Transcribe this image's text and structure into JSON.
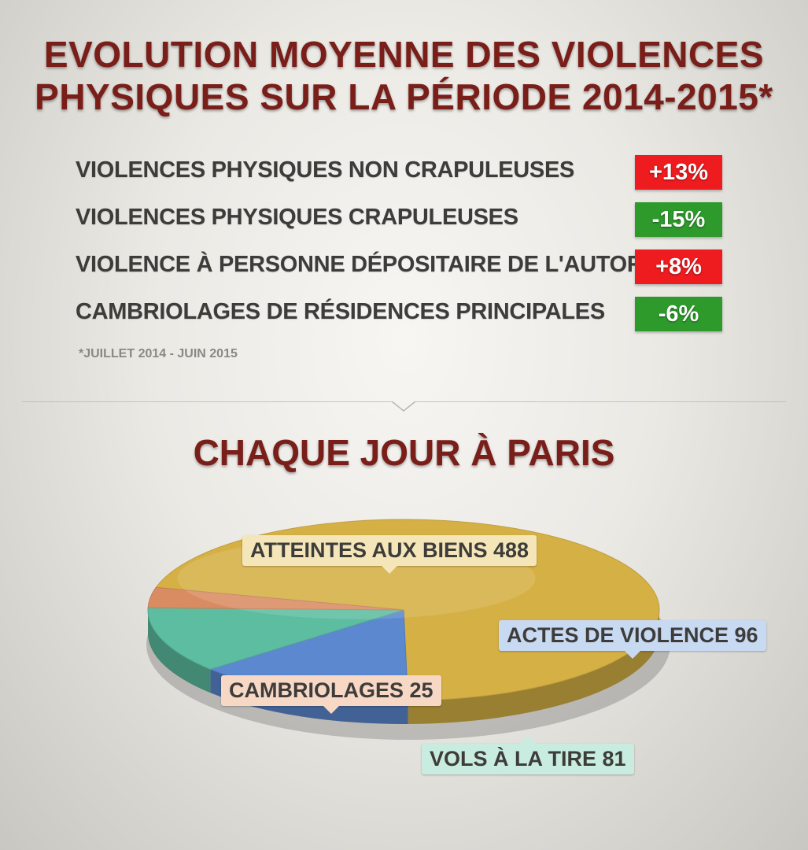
{
  "title": {
    "line1": "EVOLUTION MOYENNE DES VIOLENCES",
    "line2": "PHYSIQUES SUR LA PÉRIODE 2014-2015*"
  },
  "stats": [
    {
      "label": "VIOLENCES PHYSIQUES NON CRAPULEUSES",
      "value": "+13%",
      "color": "#ee1b1f"
    },
    {
      "label": "VIOLENCES PHYSIQUES CRAPULEUSES",
      "value": "-15%",
      "color": "#2d9a2b"
    },
    {
      "label": "VIOLENCE À PERSONNE DÉPOSITAIRE DE L'AUTORITÉ",
      "value": "+8%",
      "color": "#ee1b1f"
    },
    {
      "label": "CAMBRIOLAGES DE RÉSIDENCES PRINCIPALES",
      "value": "-6%",
      "color": "#2d9a2b"
    }
  ],
  "footnote": "*JUILLET 2014 - JUIN 2015",
  "subtitle": "CHAQUE JOUR À PARIS",
  "chart_data": {
    "type": "pie",
    "title": "CHAQUE JOUR À PARIS",
    "slices": [
      {
        "name": "ATTEINTES AUX BIENS",
        "value": 488,
        "label": "ATTEINTES AUX BIENS 488",
        "color": "#d5b045",
        "label_bg": "#f4e6b8"
      },
      {
        "name": "ACTES DE VIOLENCE",
        "value": 96,
        "label": "ACTES DE VIOLENCE 96",
        "color": "#5b88cf",
        "label_bg": "#c8d9f2"
      },
      {
        "name": "VOLS À LA TIRE",
        "value": 81,
        "label": "VOLS À LA TIRE 81",
        "color": "#5dbda0",
        "label_bg": "#c8ece0"
      },
      {
        "name": "CAMBRIOLAGES",
        "value": 25,
        "label": "CAMBRIOLAGES 25",
        "color": "#d98c62",
        "label_bg": "#f6d8c5"
      }
    ]
  }
}
